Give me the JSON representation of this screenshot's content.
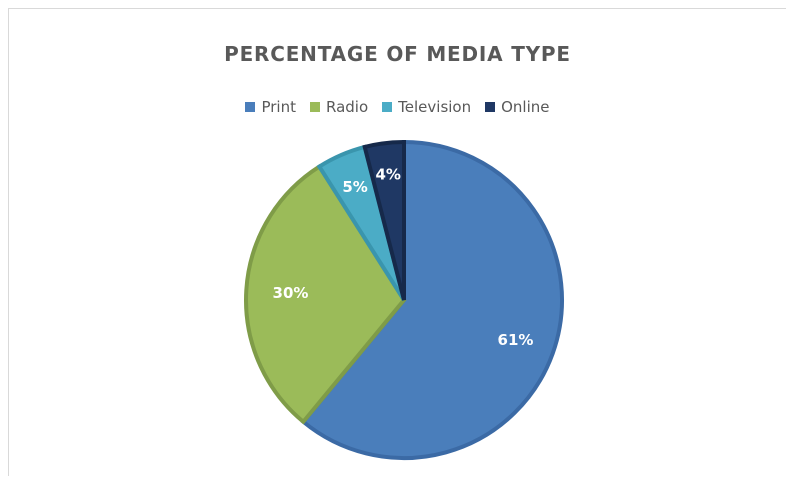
{
  "chart_data": {
    "type": "pie",
    "title": "PERCENTAGE OF MEDIA TYPE",
    "categories": [
      "Print",
      "Radio",
      "Television",
      "Online"
    ],
    "values": [
      61,
      30,
      5,
      4
    ],
    "data_labels": [
      "61%",
      "30%",
      "5%",
      "4%"
    ],
    "colors": [
      "#4a7ebb",
      "#9bbb59",
      "#4bacc6",
      "#1f3864"
    ],
    "edge_colors": [
      "#3b6aa5",
      "#7f9c48",
      "#3a95ad",
      "#16294a"
    ],
    "legend_position": "top"
  }
}
